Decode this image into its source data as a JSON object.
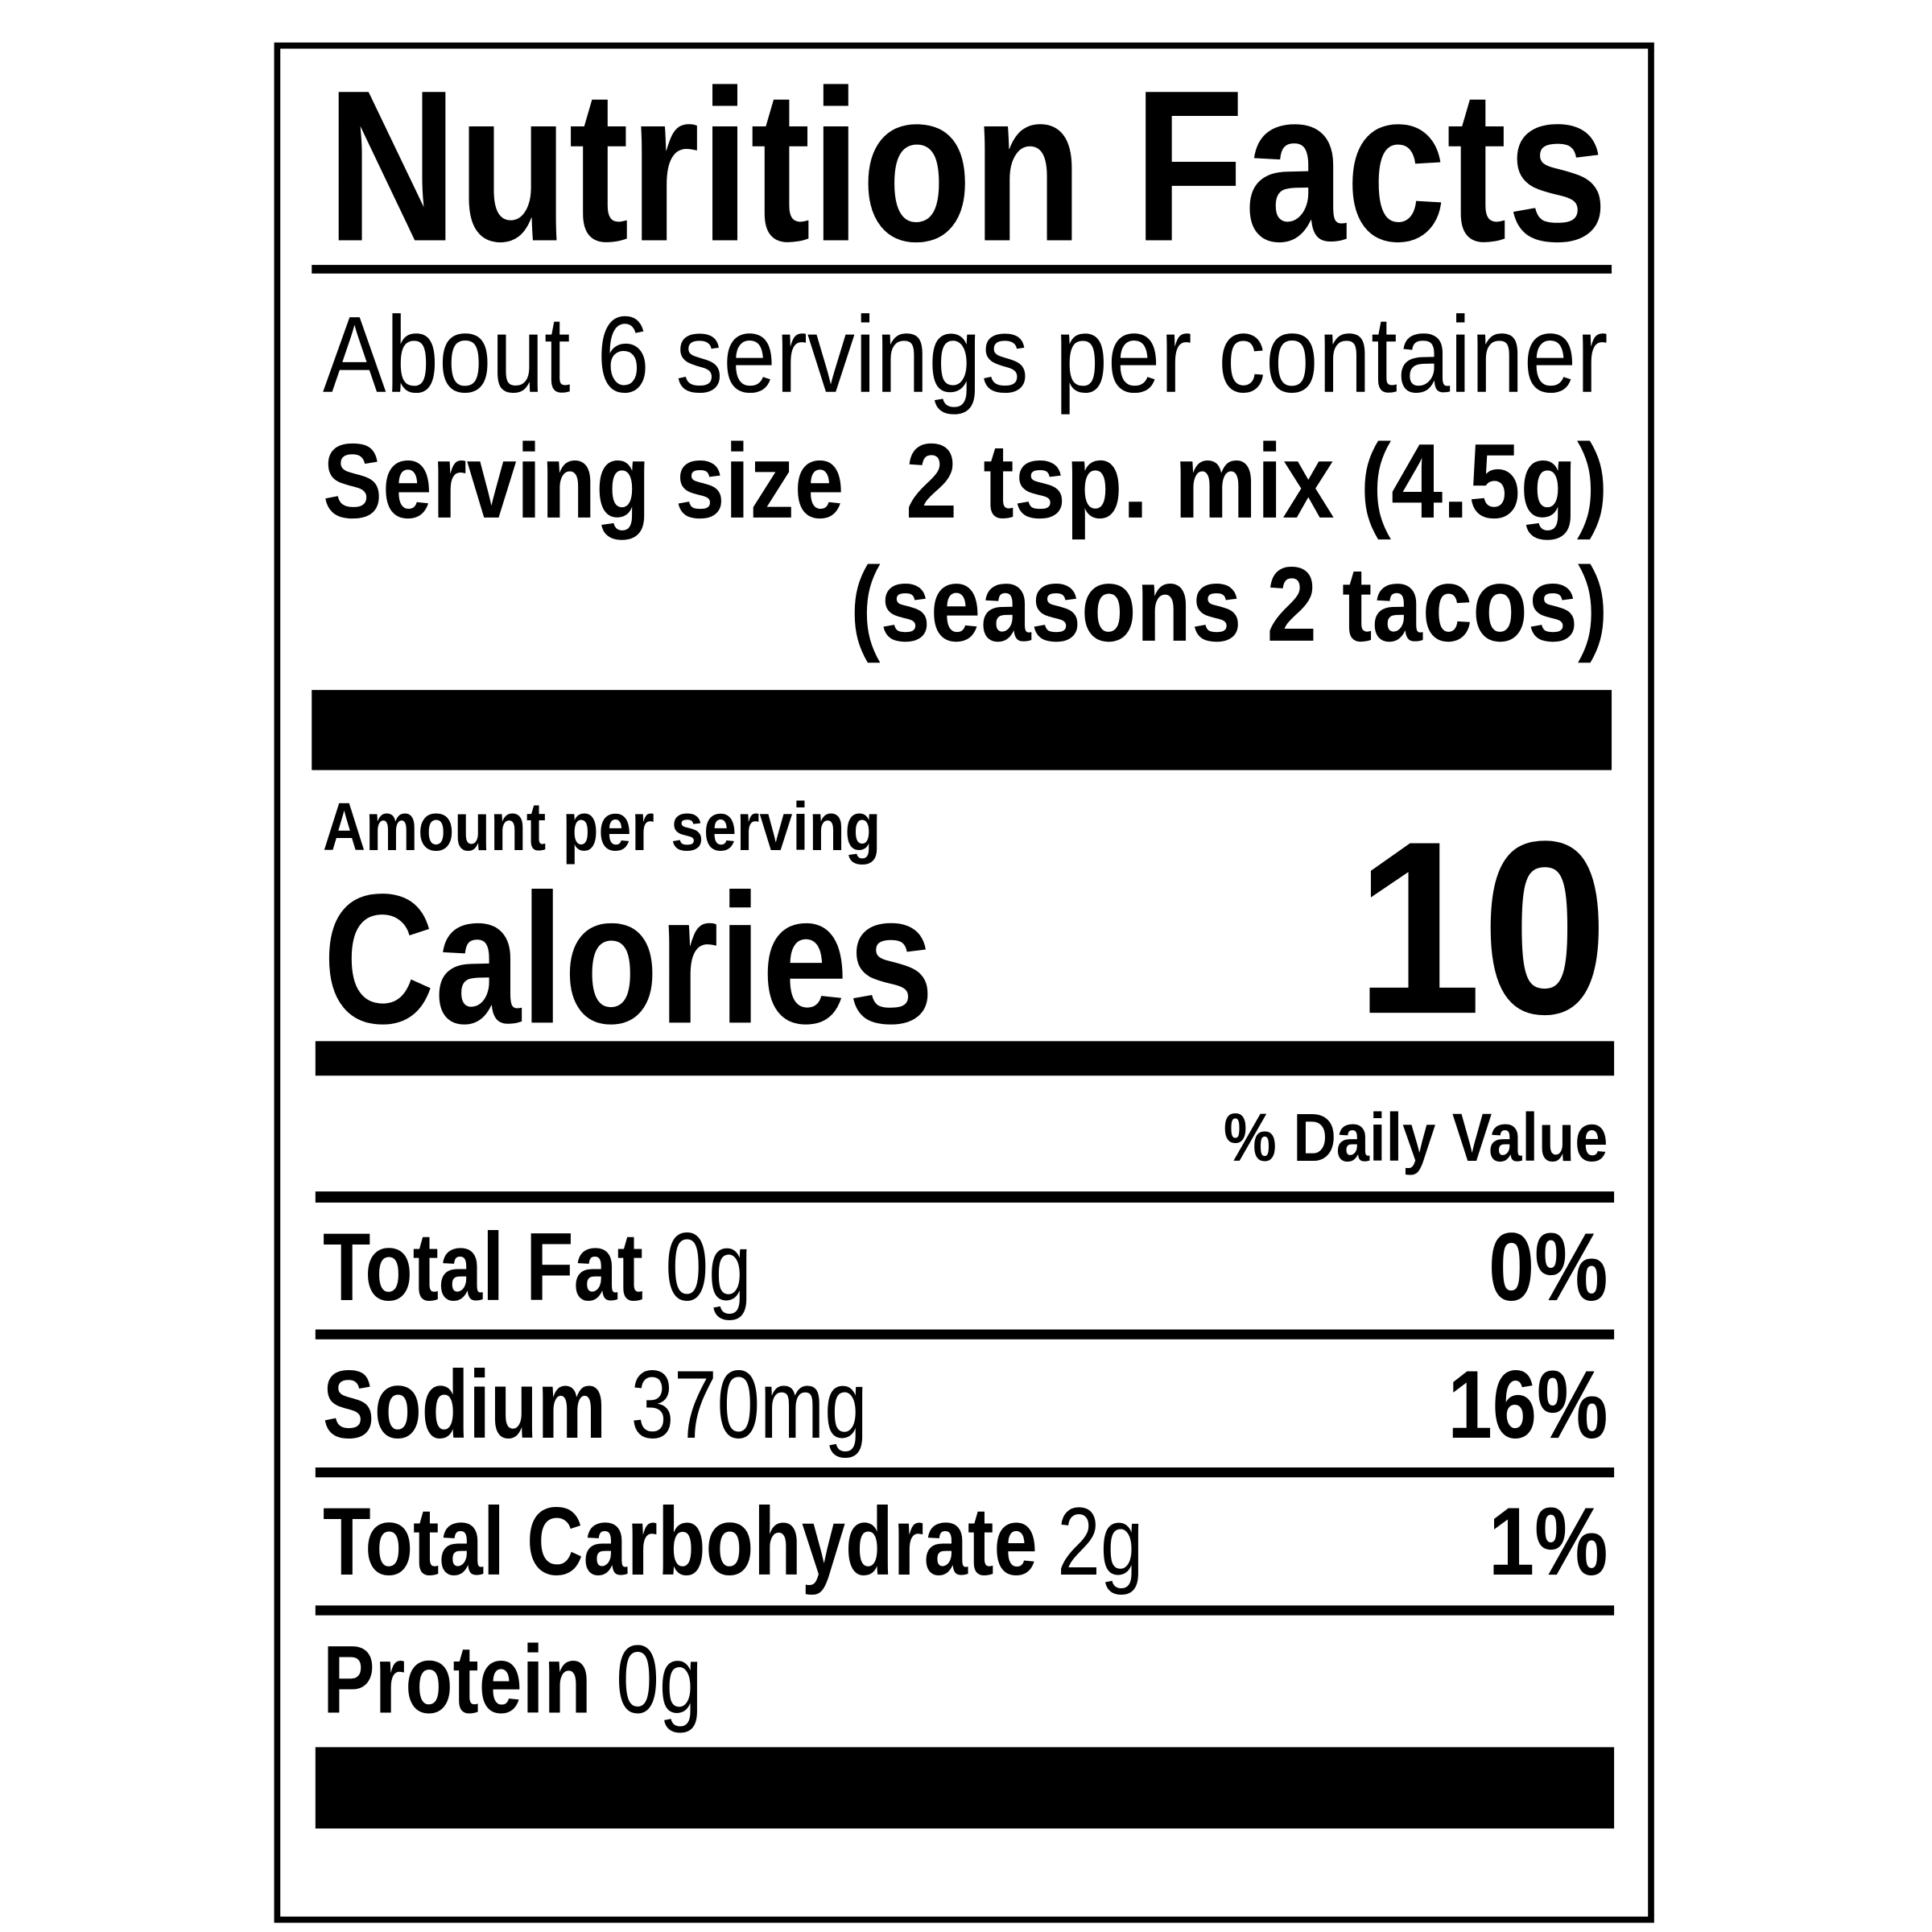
{
  "title": "Nutrition Facts",
  "servings": "About 6 servings per container",
  "serving_size": {
    "label": "Serving size",
    "value": "2 tsp. mix (4.5g)",
    "note": "(seasons 2 tacos)"
  },
  "amount_per_serving": "Amount per serving",
  "calories": {
    "label": "Calories",
    "value": "10"
  },
  "daily_value_header": "% Daily Value",
  "nutrients": [
    {
      "name": "Total Fat",
      "amount": "0g",
      "dv": "0%"
    },
    {
      "name": "Sodium",
      "amount": "370mg",
      "dv": "16%"
    },
    {
      "name": "Total Carbohydrate",
      "amount": "2g",
      "dv": "1%"
    },
    {
      "name": "Protein",
      "amount": "0g"
    }
  ]
}
